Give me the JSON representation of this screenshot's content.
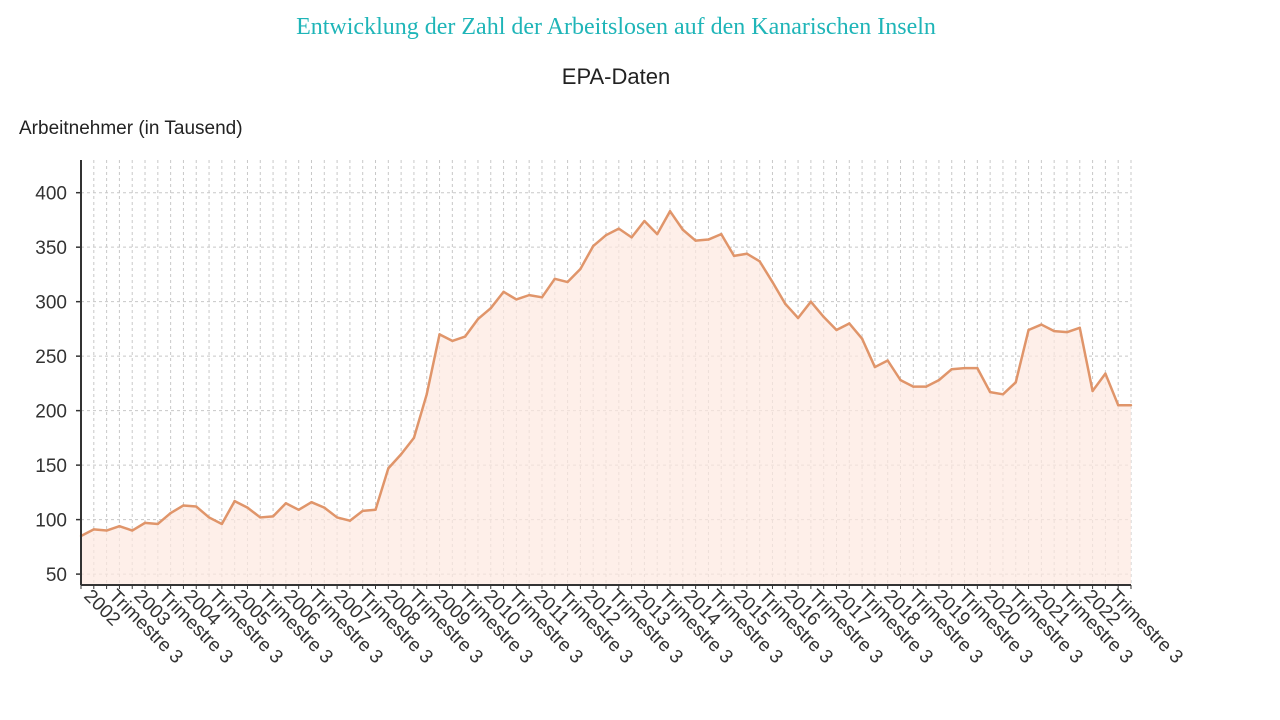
{
  "chart_data": {
    "type": "area",
    "title": "Entwicklung der Zahl der Arbeitslosen auf den Kanarischen Inseln",
    "subtitle": "EPA-Daten",
    "ylabel": "Arbeitnehmer (in Tausend)",
    "xlabel": "",
    "ylim": [
      40,
      430
    ],
    "yticks": [
      50,
      100,
      150,
      200,
      250,
      300,
      350,
      400
    ],
    "grid": true,
    "legend": "none",
    "colors": {
      "line": "#e0956a",
      "fill": "#fde8e0",
      "title": "#1fb5b8",
      "grid": "#c8c8c8"
    },
    "x_tick_labels": [
      "2002",
      "Trimestre 3",
      "2003",
      "Trimestre 3",
      "2004",
      "Trimestre 3",
      "2005",
      "Trimestre 3",
      "2006",
      "Trimestre 3",
      "2007",
      "Trimestre 3",
      "2008",
      "Trimestre 3",
      "2009",
      "Trimestre 3",
      "2010",
      "Trimestre 3",
      "2011",
      "Trimestre 3",
      "2012",
      "Trimestre 3",
      "2013",
      "Trimestre 3",
      "2014",
      "Trimestre 3",
      "2015",
      "Trimestre 3",
      "2016",
      "Trimestre 3",
      "2017",
      "Trimestre 3",
      "2018",
      "Trimestre 3",
      "2019",
      "Trimestre 3",
      "2020",
      "Trimestre 3",
      "2021",
      "Trimestre 3",
      "2022",
      "Trimestre 3"
    ],
    "series": [
      {
        "values": [
          85,
          91,
          90,
          94,
          90,
          97,
          96,
          106,
          113,
          112,
          102,
          96,
          117,
          111,
          102,
          103,
          115,
          109,
          116,
          111,
          102,
          99,
          108,
          109,
          147,
          160,
          175,
          215,
          270,
          264,
          268,
          284,
          294,
          309,
          302,
          306,
          304,
          321,
          318,
          330,
          351,
          361,
          367,
          359,
          374,
          362,
          383,
          366,
          356,
          357,
          362,
          342,
          344,
          337,
          318,
          298,
          285,
          300,
          286,
          274,
          280,
          266,
          240,
          246,
          228,
          222,
          222,
          228,
          238,
          239,
          239,
          217,
          215,
          226,
          274,
          279,
          273,
          272,
          276,
          218,
          234,
          205,
          205
        ]
      }
    ]
  }
}
